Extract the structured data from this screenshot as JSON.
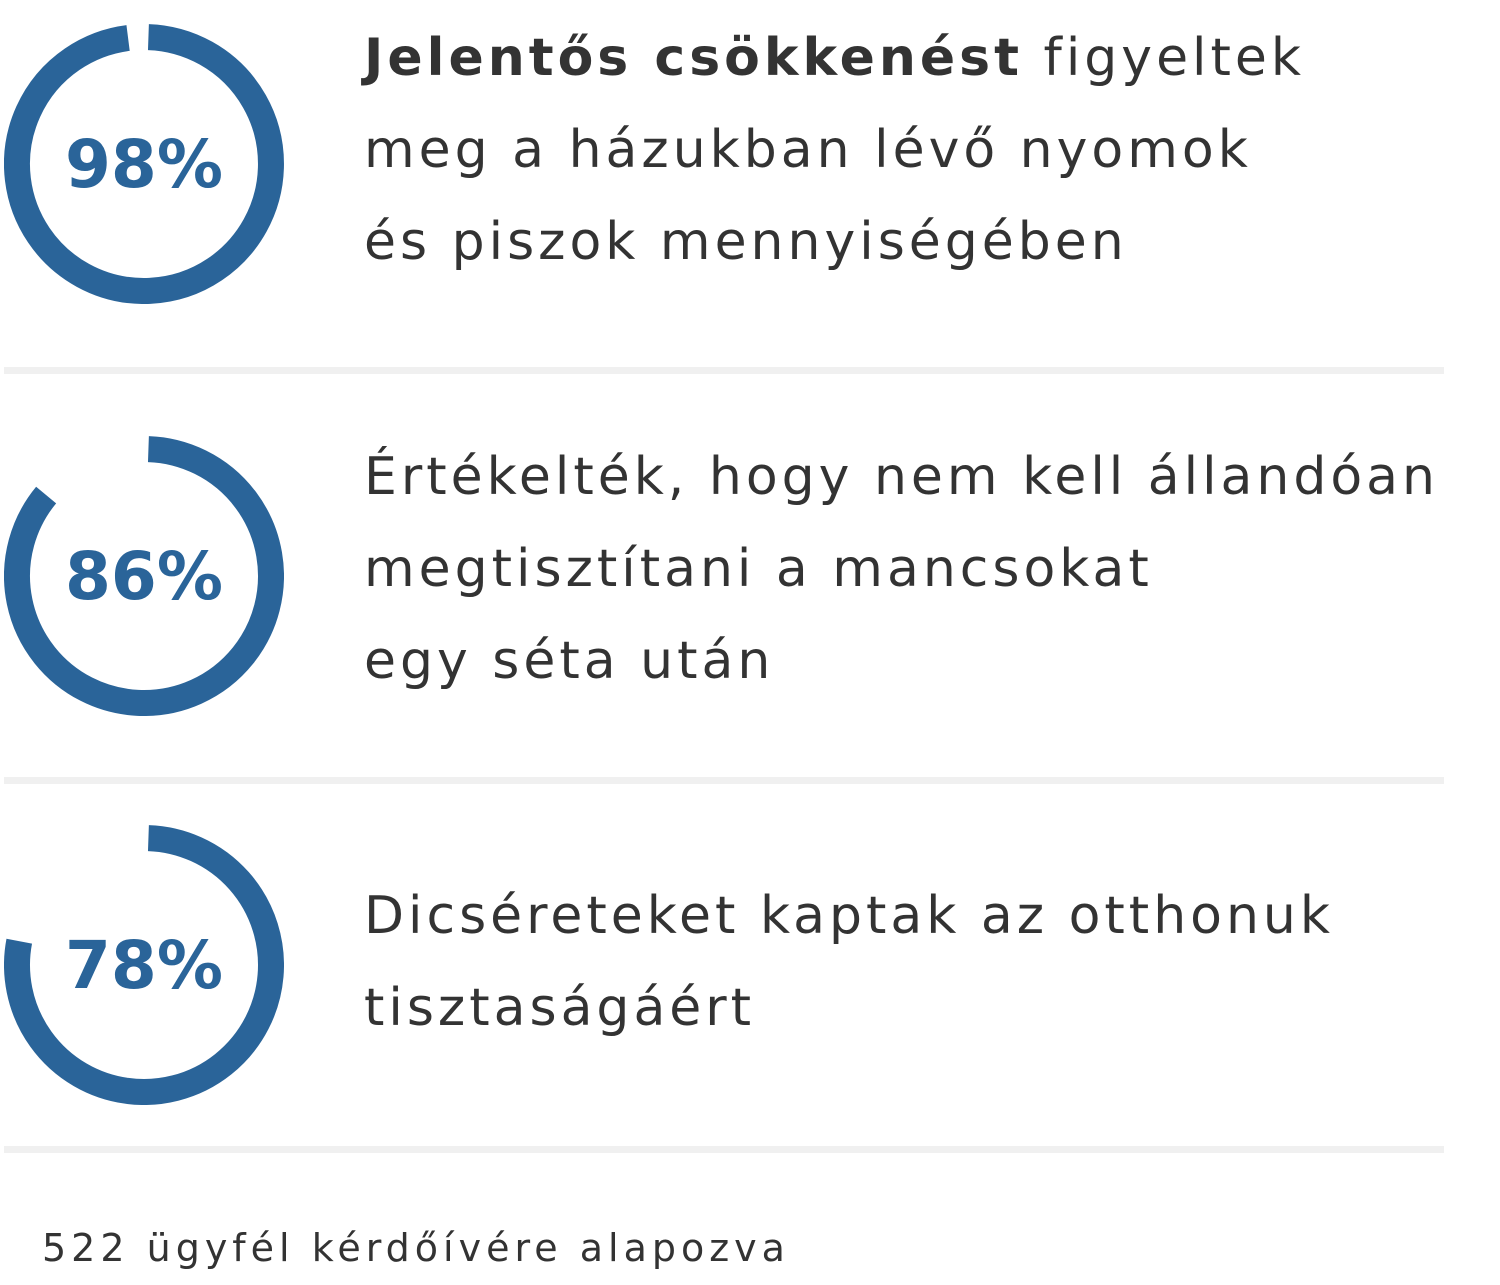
{
  "colors": {
    "accent": "#2a6499",
    "text": "#333333",
    "divider": "#f0f0f0"
  },
  "chart_data": [
    {
      "type": "pie",
      "values": [
        98
      ],
      "center_label": "98%",
      "description_bold": "Jelentős csökkenést",
      "description_lines": [
        "figyeltek",
        "meg a házukban lévő nyomok",
        "és piszok mennyiségében"
      ]
    },
    {
      "type": "pie",
      "values": [
        86
      ],
      "center_label": "86%",
      "description_bold": "",
      "description_lines": [
        "Értékelték, hogy nem kell állandóan",
        "megtisztítani a mancsokat",
        "egy séta után"
      ]
    },
    {
      "type": "pie",
      "values": [
        78
      ],
      "center_label": "78%",
      "description_bold": "",
      "description_lines": [
        "Dicséreteket kaptak az otthonuk",
        "tisztaságáért"
      ]
    }
  ],
  "footer": {
    "note": "522 ügyfél kérdőívére alapozva"
  }
}
